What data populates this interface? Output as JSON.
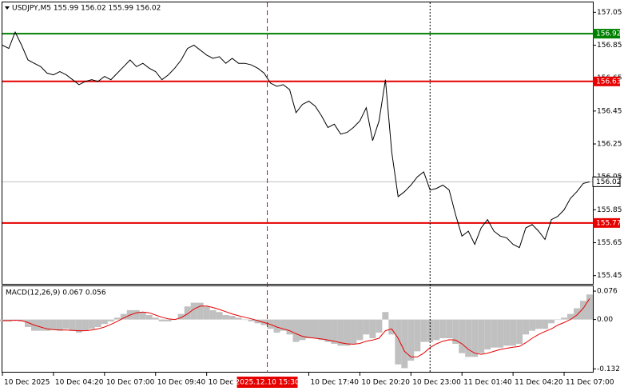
{
  "chart_data": [
    {
      "type": "line",
      "title": "USDJPY,M5  155.99 156.02 155.99 156.02",
      "color": "#000000",
      "values": [
        156.85,
        156.83,
        156.93,
        156.85,
        156.76,
        156.74,
        156.72,
        156.68,
        156.67,
        156.69,
        156.67,
        156.64,
        156.61,
        156.63,
        156.64,
        156.63,
        156.66,
        156.64,
        156.68,
        156.72,
        156.76,
        156.72,
        156.74,
        156.71,
        156.69,
        156.64,
        156.67,
        156.71,
        156.76,
        156.83,
        156.85,
        156.82,
        156.79,
        156.77,
        156.78,
        156.74,
        156.77,
        156.74,
        156.74,
        156.73,
        156.71,
        156.68,
        156.62,
        156.6,
        156.61,
        156.58,
        156.44,
        156.49,
        156.51,
        156.48,
        156.42,
        156.35,
        156.37,
        156.31,
        156.32,
        156.35,
        156.39,
        156.47,
        156.27,
        156.39,
        156.64,
        156.2,
        155.93,
        155.96,
        156.0,
        156.05,
        156.08,
        155.97,
        155.98,
        156.0,
        155.97,
        155.82,
        155.69,
        155.72,
        155.64,
        155.74,
        155.79,
        155.72,
        155.69,
        155.68,
        155.64,
        155.62,
        155.74,
        155.76,
        155.72,
        155.67,
        155.79,
        155.81,
        155.85,
        155.92,
        155.96,
        156.01,
        156.02
      ],
      "xlim": [
        0,
        92.5
      ],
      "ylim": [
        155.4,
        157.11
      ],
      "yticks": [
        157.05,
        156.85,
        156.65,
        156.45,
        156.25,
        156.05,
        155.85,
        155.65,
        155.45
      ],
      "levels": [
        {
          "value": 156.92,
          "color": "#008000"
        },
        {
          "value": 156.63,
          "color": "#e60000"
        },
        {
          "value": 155.77,
          "color": "#e60000"
        }
      ],
      "current": 156.02,
      "vlines": [
        {
          "value": 41.5,
          "label": "2025.12.10 15:30",
          "color": "#e60000",
          "style": "dashed"
        },
        {
          "value": 67,
          "color": "#000000",
          "style": "dotted"
        }
      ]
    },
    {
      "type": "macd",
      "title": "MACD(12,26,9) 0.067 0.056",
      "histogram": {
        "color": "#c0c0c0",
        "values": [
          -0.005,
          -0.005,
          0.0,
          -0.005,
          -0.02,
          -0.03,
          -0.03,
          -0.03,
          -0.028,
          -0.03,
          -0.025,
          -0.03,
          -0.035,
          -0.03,
          -0.025,
          -0.02,
          -0.012,
          -0.005,
          0.005,
          0.015,
          0.025,
          0.025,
          0.02,
          0.012,
          0.005,
          -0.005,
          -0.005,
          0.0,
          0.015,
          0.035,
          0.045,
          0.045,
          0.035,
          0.025,
          0.02,
          0.012,
          0.01,
          0.005,
          0.0,
          -0.005,
          -0.01,
          -0.015,
          -0.025,
          -0.035,
          -0.03,
          -0.04,
          -0.06,
          -0.055,
          -0.05,
          -0.05,
          -0.055,
          -0.06,
          -0.065,
          -0.07,
          -0.07,
          -0.065,
          -0.055,
          -0.04,
          -0.05,
          -0.035,
          0.02,
          -0.04,
          -0.12,
          -0.13,
          -0.11,
          -0.085,
          -0.06,
          -0.06,
          -0.055,
          -0.05,
          -0.05,
          -0.065,
          -0.09,
          -0.1,
          -0.1,
          -0.09,
          -0.08,
          -0.075,
          -0.075,
          -0.07,
          -0.07,
          -0.065,
          -0.04,
          -0.03,
          -0.025,
          -0.025,
          -0.01,
          0.0,
          0.005,
          0.015,
          0.03,
          0.05,
          0.067
        ]
      },
      "signal": {
        "color": "#e60000",
        "values": [
          -0.003,
          -0.003,
          -0.002,
          -0.003,
          -0.008,
          -0.015,
          -0.02,
          -0.025,
          -0.027,
          -0.028,
          -0.028,
          -0.029,
          -0.03,
          -0.03,
          -0.028,
          -0.025,
          -0.02,
          -0.013,
          -0.005,
          0.004,
          0.012,
          0.018,
          0.02,
          0.018,
          0.012,
          0.006,
          0.002,
          0.0,
          0.005,
          0.015,
          0.028,
          0.036,
          0.036,
          0.032,
          0.027,
          0.021,
          0.015,
          0.01,
          0.006,
          0.002,
          -0.003,
          -0.008,
          -0.013,
          -0.02,
          -0.025,
          -0.03,
          -0.038,
          -0.045,
          -0.048,
          -0.05,
          -0.052,
          -0.055,
          -0.058,
          -0.062,
          -0.065,
          -0.066,
          -0.064,
          -0.058,
          -0.055,
          -0.05,
          -0.03,
          -0.025,
          -0.05,
          -0.085,
          -0.1,
          -0.1,
          -0.09,
          -0.075,
          -0.065,
          -0.058,
          -0.054,
          -0.055,
          -0.065,
          -0.08,
          -0.09,
          -0.093,
          -0.09,
          -0.085,
          -0.08,
          -0.077,
          -0.074,
          -0.072,
          -0.062,
          -0.05,
          -0.04,
          -0.032,
          -0.025,
          -0.015,
          -0.008,
          0.0,
          0.012,
          0.03,
          0.056
        ]
      },
      "xlim": [
        0,
        92.5
      ],
      "ylim": [
        -0.142,
        0.089
      ],
      "yticks": [
        0.076,
        {
          "value": 0,
          "label": "0.00"
        },
        -0.132
      ],
      "xticks": [
        {
          "value": 0,
          "label": "10 Dec 2025"
        },
        {
          "value": 8,
          "label": "10 Dec 04:20"
        },
        {
          "value": 16,
          "label": "10 Dec 07:00"
        },
        {
          "value": 24,
          "label": "10 Dec 09:40"
        },
        {
          "value": 32,
          "label": "10 Dec 1"
        },
        {
          "value": 48,
          "label": "10 Dec 17:40"
        },
        {
          "value": 56,
          "label": "10 Dec 20:20"
        },
        {
          "value": 64,
          "label": "10 Dec 23:00"
        },
        {
          "value": 72,
          "label": "11 Dec 01:40"
        },
        {
          "value": 80,
          "label": "11 Dec 04:20"
        },
        {
          "value": 88,
          "label": "11 Dec 07:00"
        }
      ]
    }
  ]
}
